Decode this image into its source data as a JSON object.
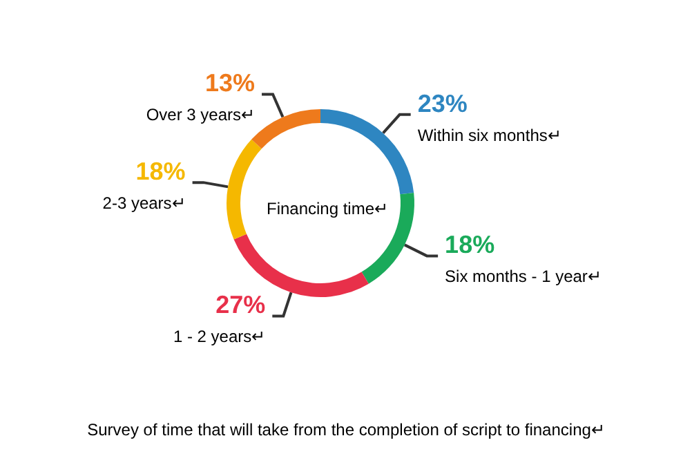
{
  "chart_data": {
    "type": "donut",
    "title": "Financing time↵",
    "categories": [
      "Within six months↵",
      "Six months - 1 year↵",
      "1 - 2 years↵",
      "2-3 years↵",
      "Over 3 years↵"
    ],
    "values": [
      23,
      18,
      27,
      18,
      13
    ],
    "value_labels": [
      "23%",
      "18%",
      "27%",
      "18%",
      "13%"
    ],
    "colors": [
      "#2e86c1",
      "#1aaa5a",
      "#e8304a",
      "#f5b800",
      "#ee7a1c"
    ],
    "legend": false,
    "annotations": [
      "Survey of time that will take from the completion of script to financing↵"
    ]
  }
}
